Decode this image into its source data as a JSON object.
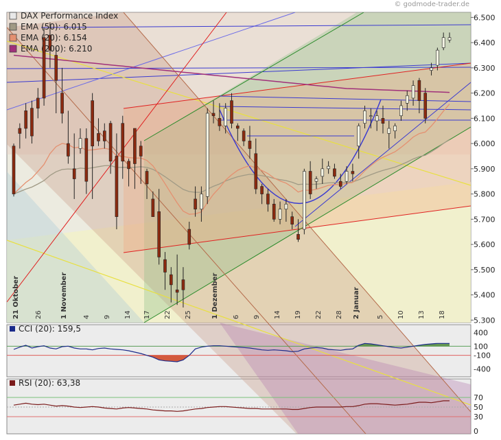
{
  "watermark": "© godmode-trader.de",
  "legend": [
    {
      "label": "DAX Performance Index",
      "color": "#e8e8e8"
    },
    {
      "label": "EMA (50): 6.015",
      "color": "#a09a85"
    },
    {
      "label": "EMA (20): 6.154",
      "color": "#e49070"
    },
    {
      "label": "EMA (200): 6.210",
      "color": "#a0307a"
    }
  ],
  "cci_label": "CCI (20): 159,5",
  "rsi_label": "RSI (20): 63,38",
  "colors": {
    "up": "#f3f3e3",
    "down": "#8b2a10",
    "cci_fill_pos": "#4f8a3a",
    "cci_fill_neg": "#d04a2a",
    "cci_line": "#1a2a8a",
    "rsi_line": "#7a1a1a"
  },
  "chart_data": {
    "type": "candlestick",
    "y_ticks": [
      "6.500",
      "6.400",
      "6.300",
      "6.200",
      "6.100",
      "6.000",
      "5.900",
      "5.800",
      "5.700",
      "5.600",
      "5.500",
      "5.400",
      "5.300"
    ],
    "ylim": [
      5290,
      6520
    ],
    "month_labels": [
      "21 Oktober",
      "1 November",
      "1 Dezember",
      "2 Januar"
    ],
    "x_labels": [
      "26",
      "4",
      "9",
      "14",
      "17",
      "22",
      "25",
      "6",
      "9",
      "14",
      "19",
      "22",
      "28",
      "5",
      "10",
      "13",
      "18"
    ],
    "candles": [
      [
        5990,
        5800,
        6000,
        5790
      ],
      [
        6060,
        6040,
        6080,
        5980
      ],
      [
        6130,
        6060,
        6160,
        6020
      ],
      [
        6140,
        6030,
        6170,
        6000
      ],
      [
        6180,
        6140,
        6220,
        6100
      ],
      [
        6420,
        6180,
        6460,
        6150
      ],
      [
        6430,
        6370,
        6480,
        6300
      ],
      [
        6350,
        6250,
        6380,
        6120
      ],
      [
        6200,
        6120,
        6300,
        6080
      ],
      [
        6000,
        5950,
        6130,
        5920
      ],
      [
        5900,
        5860,
        6040,
        5780
      ],
      [
        5980,
        6020,
        6060,
        5960
      ],
      [
        6020,
        5850,
        6060,
        5800
      ],
      [
        6170,
        5990,
        6200,
        5780
      ],
      [
        6040,
        6010,
        6100,
        5990
      ],
      [
        6050,
        6010,
        6080,
        5980
      ],
      [
        6080,
        5930,
        6090,
        5880
      ],
      [
        5950,
        5710,
        6040,
        5660
      ],
      [
        6080,
        5930,
        6110,
        5860
      ],
      [
        5930,
        5900,
        5940,
        5830
      ],
      [
        6060,
        5920,
        6060,
        5820
      ],
      [
        5990,
        5950,
        6010,
        5840
      ],
      [
        5890,
        5840,
        5900,
        5780
      ],
      [
        5780,
        5710,
        5810,
        5720
      ],
      [
        5730,
        5550,
        5820,
        5520
      ],
      [
        5540,
        5490,
        5570,
        5420
      ],
      [
        5480,
        5440,
        5510,
        5370
      ],
      [
        5420,
        5410,
        5560,
        5360
      ],
      [
        5460,
        5420,
        5510,
        5350
      ],
      [
        5660,
        5600,
        5690,
        5580
      ],
      [
        5780,
        5740,
        5830,
        5710
      ],
      [
        5740,
        5800,
        5830,
        5690
      ],
      [
        5790,
        6120,
        6140,
        5760
      ],
      [
        6120,
        6110,
        6170,
        6080
      ],
      [
        6100,
        6070,
        6160,
        6050
      ],
      [
        6070,
        6140,
        6160,
        6040
      ],
      [
        6170,
        6080,
        6200,
        6060
      ],
      [
        6070,
        6060,
        6080,
        6010
      ],
      [
        6050,
        6010,
        6060,
        5990
      ],
      [
        6010,
        5980,
        6070,
        5940
      ],
      [
        5960,
        5820,
        6020,
        5800
      ],
      [
        5830,
        5800,
        5840,
        5760
      ],
      [
        5800,
        5760,
        5820,
        5730
      ],
      [
        5760,
        5700,
        5780,
        5690
      ],
      [
        5700,
        5740,
        5770,
        5680
      ],
      [
        5740,
        5760,
        5780,
        5690
      ],
      [
        5710,
        5680,
        5730,
        5660
      ],
      [
        5640,
        5620,
        5700,
        5610
      ],
      [
        5660,
        5890,
        5900,
        5640
      ],
      [
        5890,
        5800,
        5930,
        5780
      ],
      [
        5850,
        5860,
        5870,
        5820
      ],
      [
        5870,
        5900,
        5940,
        5840
      ],
      [
        5900,
        5910,
        5930,
        5880
      ],
      [
        5900,
        5870,
        5920,
        5860
      ],
      [
        5850,
        5830,
        5880,
        5820
      ],
      [
        5850,
        5890,
        5910,
        5840
      ],
      [
        5890,
        5880,
        5920,
        5850
      ],
      [
        5990,
        6070,
        6080,
        5940
      ],
      [
        6080,
        6130,
        6150,
        6060
      ],
      [
        6110,
        6110,
        6140,
        6060
      ],
      [
        6090,
        6110,
        6130,
        6050
      ],
      [
        6100,
        6080,
        6150,
        6040
      ],
      [
        6040,
        6060,
        6090,
        5980
      ],
      [
        6050,
        6070,
        6080,
        6020
      ],
      [
        6110,
        6150,
        6170,
        6090
      ],
      [
        6160,
        6190,
        6210,
        6130
      ],
      [
        6180,
        6230,
        6250,
        6150
      ],
      [
        6250,
        6170,
        6260,
        6120
      ],
      [
        6200,
        6100,
        6220,
        6080
      ],
      [
        6290,
        6300,
        6320,
        6270
      ],
      [
        6310,
        6370,
        6380,
        6290
      ],
      [
        6380,
        6420,
        6440,
        6370
      ],
      [
        6410,
        6420,
        6440,
        6400
      ]
    ],
    "cci_yticks": [
      "400",
      "100",
      "-100",
      "-400"
    ],
    "cci_ylim": [
      -480,
      480
    ],
    "cci_levels": [
      100,
      -100
    ],
    "cci_values": [
      30,
      80,
      120,
      60,
      90,
      110,
      60,
      40,
      90,
      100,
      60,
      40,
      40,
      20,
      50,
      60,
      40,
      30,
      20,
      0,
      -30,
      -60,
      -100,
      -140,
      -200,
      -220,
      -230,
      -240,
      -200,
      -100,
      40,
      80,
      100,
      110,
      110,
      100,
      90,
      80,
      70,
      60,
      40,
      20,
      10,
      20,
      10,
      0,
      -20,
      -10,
      40,
      60,
      70,
      60,
      30,
      20,
      10,
      30,
      40,
      120,
      160,
      150,
      130,
      110,
      90,
      70,
      60,
      80,
      100,
      120,
      140,
      150,
      160,
      160,
      160
    ],
    "rsi_yticks": [
      "70",
      "50",
      "30",
      "0"
    ],
    "rsi_ylim": [
      0,
      100
    ],
    "rsi_levels": [
      70,
      30
    ],
    "rsi_values": [
      54,
      56,
      58,
      56,
      55,
      56,
      54,
      52,
      53,
      52,
      50,
      49,
      50,
      51,
      50,
      48,
      47,
      46,
      48,
      49,
      48,
      47,
      46,
      44,
      43,
      42,
      42,
      41,
      42,
      44,
      46,
      47,
      49,
      50,
      51,
      51,
      50,
      49,
      48,
      47,
      47,
      46,
      46,
      46,
      46,
      46,
      45,
      45,
      47,
      49,
      50,
      50,
      50,
      50,
      50,
      51,
      51,
      53,
      56,
      57,
      57,
      56,
      55,
      54,
      55,
      56,
      58,
      60,
      60,
      59,
      61,
      63,
      63
    ]
  }
}
